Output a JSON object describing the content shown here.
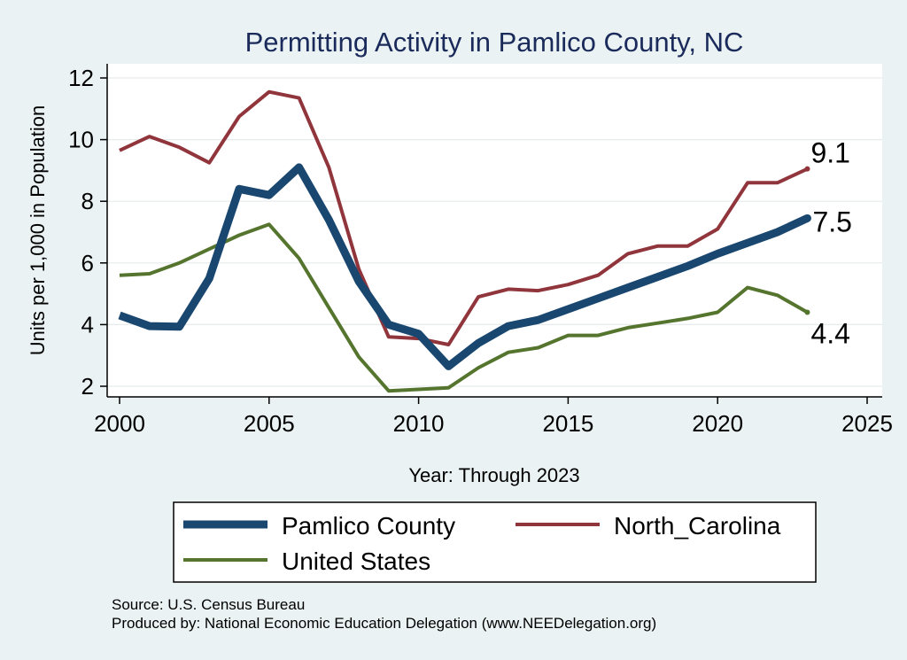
{
  "chart_data": {
    "type": "line",
    "title": "Permitting Activity in Pamlico County, NC",
    "xlabel": "Year: Through 2023",
    "ylabel": "Units per 1,000 in Population",
    "xlim": [
      2000,
      2025
    ],
    "ylim": [
      1.5,
      12.5
    ],
    "xticks": [
      2000,
      2005,
      2010,
      2015,
      2020,
      2025
    ],
    "yticks": [
      2,
      4,
      6,
      8,
      10,
      12
    ],
    "grid": true,
    "legend_position": "bottom",
    "series": [
      {
        "name": "Pamlico County",
        "color": "#1a476f",
        "end_label": "7.5",
        "x": [
          2000,
          2001,
          2002,
          2003,
          2004,
          2005,
          2006,
          2007,
          2008,
          2009,
          2010,
          2011,
          2012,
          2013,
          2014,
          2015,
          2016,
          2017,
          2018,
          2019,
          2020,
          2021,
          2022,
          2023
        ],
        "y": [
          4.3,
          3.95,
          3.93,
          5.5,
          8.4,
          8.2,
          9.1,
          7.4,
          5.4,
          4.0,
          3.7,
          2.65,
          3.4,
          3.95,
          4.15,
          4.5,
          4.85,
          5.2,
          5.55,
          5.9,
          6.3,
          6.65,
          7.0,
          7.45
        ]
      },
      {
        "name": "North_Carolina",
        "color": "#90353b",
        "end_label": "9.1",
        "x": [
          2000,
          2001,
          2002,
          2003,
          2004,
          2005,
          2006,
          2007,
          2008,
          2009,
          2010,
          2011,
          2012,
          2013,
          2014,
          2015,
          2016,
          2017,
          2018,
          2019,
          2020,
          2021,
          2022,
          2023
        ],
        "y": [
          9.65,
          10.1,
          9.75,
          9.25,
          10.75,
          11.55,
          11.35,
          9.1,
          5.8,
          3.6,
          3.55,
          3.35,
          4.9,
          5.15,
          5.1,
          5.3,
          5.6,
          6.3,
          6.55,
          6.55,
          7.1,
          8.6,
          8.6,
          9.05
        ]
      },
      {
        "name": "United States",
        "color": "#55752f",
        "end_label": "4.4",
        "x": [
          2000,
          2001,
          2002,
          2003,
          2004,
          2005,
          2006,
          2007,
          2008,
          2009,
          2010,
          2011,
          2012,
          2013,
          2014,
          2015,
          2016,
          2017,
          2018,
          2019,
          2020,
          2021,
          2022,
          2023
        ],
        "y": [
          5.6,
          5.65,
          6.0,
          6.45,
          6.9,
          7.25,
          6.15,
          4.55,
          2.95,
          1.85,
          1.9,
          1.95,
          2.6,
          3.1,
          3.25,
          3.65,
          3.65,
          3.9,
          4.05,
          4.2,
          4.4,
          5.2,
          4.95,
          4.4
        ]
      }
    ],
    "notes": [
      "Source: U.S. Census Bureau",
      "Produced by: National Economic Education Delegation (www.NEEDelegation.org)"
    ]
  }
}
